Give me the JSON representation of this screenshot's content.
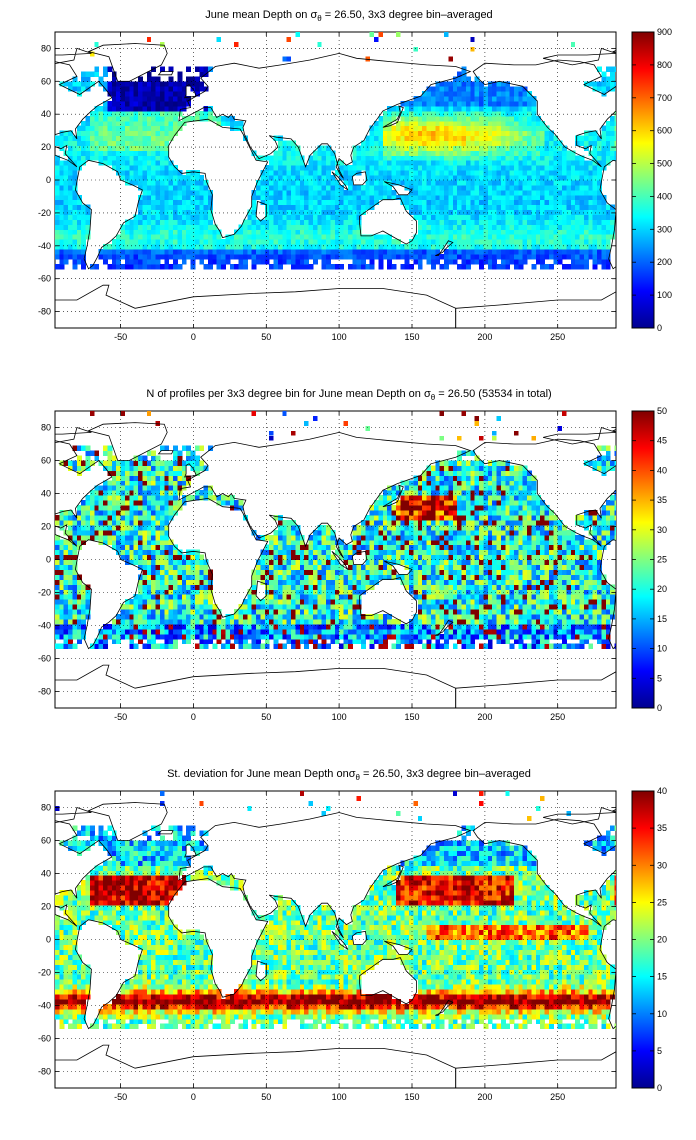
{
  "chart_data": [
    {
      "type": "heatmap",
      "title_parts": [
        "June mean Depth on ",
        "σ",
        "θ",
        " = 26.50, 3x3 degree bin–averaged"
      ],
      "xticks": [
        "-50",
        "0",
        "50",
        "100",
        "150",
        "200",
        "250"
      ],
      "xlim": [
        -95,
        290
      ],
      "yticks": [
        "80",
        "60",
        "40",
        "20",
        "0",
        "-20",
        "-40",
        "-60",
        "-80"
      ],
      "ylim": [
        -90,
        90
      ],
      "colorbar_ticks": [
        "900",
        "800",
        "700",
        "600",
        "500",
        "400",
        "300",
        "200",
        "100",
        "0"
      ],
      "colorbar_range": [
        0,
        900
      ],
      "colormap": "jet",
      "grid": true
    },
    {
      "type": "heatmap",
      "title_parts": [
        "N of profiles per 3x3 degree bin for June mean Depth on ",
        "σ",
        "θ",
        " = 26.50 (53534 in total)"
      ],
      "xticks": [
        "-50",
        "0",
        "50",
        "100",
        "150",
        "200",
        "250"
      ],
      "xlim": [
        -95,
        290
      ],
      "yticks": [
        "80",
        "60",
        "40",
        "20",
        "0",
        "-20",
        "-40",
        "-60",
        "-80"
      ],
      "ylim": [
        -90,
        90
      ],
      "colorbar_ticks": [
        "50",
        "45",
        "40",
        "35",
        "30",
        "25",
        "20",
        "15",
        "10",
        "5",
        "0"
      ],
      "colorbar_range": [
        0,
        50
      ],
      "colormap": "jet",
      "grid": true
    },
    {
      "type": "heatmap",
      "title_parts": [
        "St. deviation for June mean Depth on",
        "σ",
        "θ",
        " = 26.50, 3x3 degree bin–averaged"
      ],
      "xticks": [
        "-50",
        "0",
        "50",
        "100",
        "150",
        "200",
        "250"
      ],
      "xlim": [
        -95,
        290
      ],
      "yticks": [
        "80",
        "60",
        "40",
        "20",
        "0",
        "-20",
        "-40",
        "-60",
        "-80"
      ],
      "ylim": [
        -90,
        90
      ],
      "colorbar_ticks": [
        "40",
        "35",
        "30",
        "25",
        "20",
        "15",
        "10",
        "5",
        "0"
      ],
      "colorbar_range": [
        0,
        40
      ],
      "colormap": "jet",
      "grid": true
    }
  ]
}
